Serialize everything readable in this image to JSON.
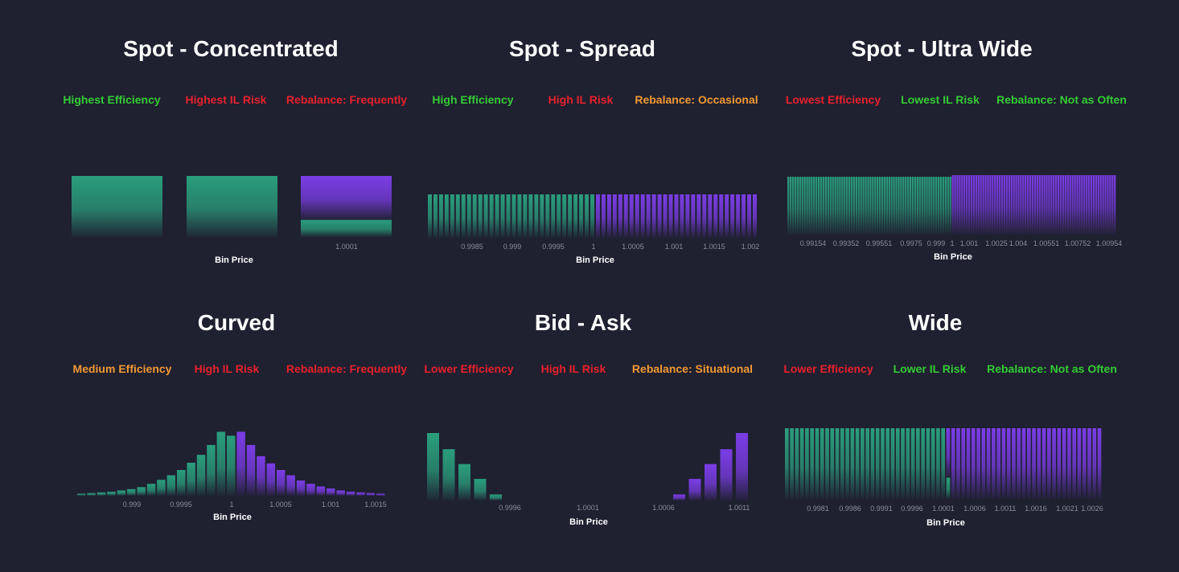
{
  "colors": {
    "background": "#1f2030",
    "green": "#2a9e7d",
    "purple": "#7b3de6",
    "text_green": "#33cc33",
    "text_red": "#e8212b",
    "text_orange": "#f29933"
  },
  "panels": [
    {
      "title": "Spot - Concentrated",
      "tags": [
        {
          "text": "Highest Efficiency",
          "color": "green"
        },
        {
          "text": "Highest IL Risk",
          "color": "red"
        },
        {
          "text": "Rebalance: Frequently",
          "color": "red"
        }
      ]
    },
    {
      "title": "Spot - Spread",
      "tags": [
        {
          "text": "High Efficiency",
          "color": "green"
        },
        {
          "text": "High IL Risk",
          "color": "red"
        },
        {
          "text": "Rebalance: Occasional",
          "color": "orange"
        }
      ]
    },
    {
      "title": "Spot - Ultra Wide",
      "tags": [
        {
          "text": "Lowest Efficiency",
          "color": "red"
        },
        {
          "text": "Lowest IL Risk",
          "color": "green"
        },
        {
          "text": "Rebalance: Not as Often",
          "color": "green"
        }
      ]
    },
    {
      "title": "Curved",
      "tags": [
        {
          "text": "Medium Efficiency",
          "color": "orange"
        },
        {
          "text": "High IL Risk",
          "color": "red"
        },
        {
          "text": "Rebalance: Frequently",
          "color": "red"
        }
      ]
    },
    {
      "title": "Bid - Ask",
      "tags": [
        {
          "text": "Lower Efficiency",
          "color": "red"
        },
        {
          "text": "High IL Risk",
          "color": "red"
        },
        {
          "text": "Rebalance: Situational",
          "color": "orange"
        }
      ]
    },
    {
      "title": "Wide",
      "tags": [
        {
          "text": "Lower Efficiency",
          "color": "red"
        },
        {
          "text": "Lower IL Risk",
          "color": "green"
        },
        {
          "text": "Rebalance: Not as Often",
          "color": "green"
        }
      ]
    }
  ],
  "chart_data": [
    {
      "type": "bar",
      "panel": "Spot - Concentrated",
      "xlabel": "Bin Price",
      "tick_labels": [
        "1.0001"
      ],
      "bars": [
        {
          "green": 1.0,
          "purple": 0.0
        },
        {
          "green": 1.0,
          "purple": 0.0
        },
        {
          "green": 0.28,
          "purple": 0.72
        }
      ]
    },
    {
      "type": "bar",
      "panel": "Spot - Spread",
      "xlabel": "Bin Price",
      "tick_labels": [
        "0.9985",
        "0.999",
        "0.9995",
        "1",
        "1.0005",
        "1.001",
        "1.0015",
        "1.002"
      ],
      "green_bins": 30,
      "purple_bins": 29,
      "value": 1.0
    },
    {
      "type": "bar",
      "panel": "Spot - Ultra Wide",
      "xlabel": "Bin Price",
      "tick_labels": [
        "0.99154",
        "0.99352",
        "0.99551",
        "0.9975",
        "0.999",
        "1",
        "1.001",
        "1.0025",
        "1.004",
        "1.00551",
        "1.00752",
        "1.00954"
      ],
      "green_bins": 70,
      "purple_bins": 70,
      "value": 1.0
    },
    {
      "type": "bar",
      "panel": "Curved",
      "xlabel": "Bin Price",
      "tick_labels": [
        "0.999",
        "0.9995",
        "1",
        "1.0005",
        "1.001",
        "1.0015"
      ],
      "green": [
        0.03,
        0.04,
        0.05,
        0.06,
        0.08,
        0.1,
        0.13,
        0.18,
        0.24,
        0.31,
        0.39,
        0.5,
        0.62,
        0.77,
        0.97,
        0.91
      ],
      "purple": [
        0.97,
        0.77,
        0.6,
        0.49,
        0.39,
        0.31,
        0.23,
        0.18,
        0.14,
        0.11,
        0.08,
        0.06,
        0.05,
        0.04,
        0.03
      ]
    },
    {
      "type": "bar",
      "panel": "Bid - Ask",
      "xlabel": "Bin Price",
      "tick_labels": [
        "0.9996",
        "1.0001",
        "1.0006",
        "1.0011"
      ],
      "green": [
        1.0,
        0.76,
        0.54,
        0.32,
        0.09
      ],
      "purple": [
        0.09,
        0.32,
        0.54,
        0.76,
        1.0
      ]
    },
    {
      "type": "bar",
      "panel": "Wide",
      "xlabel": "Bin Price",
      "tick_labels": [
        "0.9981",
        "0.9986",
        "0.9991",
        "0.9996",
        "1.0001",
        "1.0006",
        "1.0011",
        "1.0016",
        "1.0021",
        "1.0026"
      ],
      "green_bins": 32,
      "purple_bins": 31,
      "value": 1.0,
      "split_bin_green_fraction": 0.3
    }
  ]
}
